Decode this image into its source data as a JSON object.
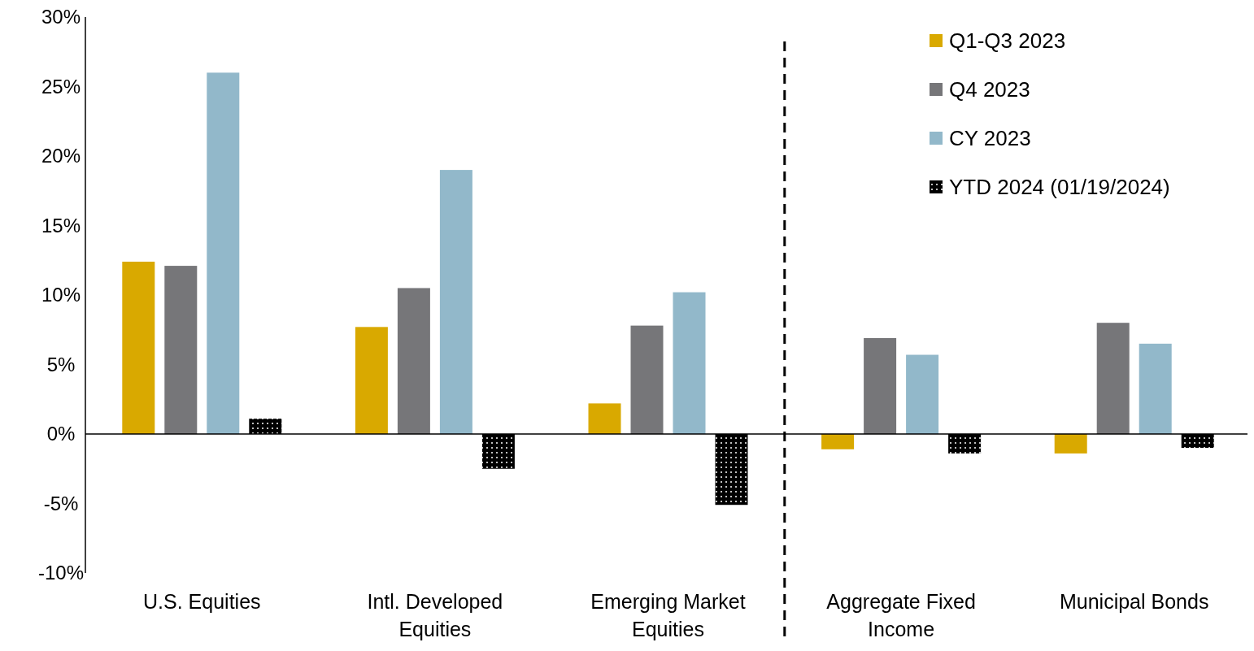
{
  "chart_data": {
    "type": "bar",
    "categories": [
      "U.S. Equities",
      "Intl. Developed Equities",
      "Emerging Market Equities",
      "Aggregate Fixed Income",
      "Municipal Bonds"
    ],
    "series": [
      {
        "name": "Q1-Q3 2023",
        "color": "#d9a900",
        "values": [
          12.4,
          7.7,
          2.2,
          -1.1,
          -1.4
        ]
      },
      {
        "name": "Q4 2023",
        "color": "#767679",
        "values": [
          12.1,
          10.5,
          7.8,
          6.9,
          8.0
        ]
      },
      {
        "name": "CY 2023",
        "color": "#92b8ca",
        "values": [
          26.0,
          19.0,
          10.2,
          5.7,
          6.5
        ]
      },
      {
        "name": "YTD 2024 (01/19/2024)",
        "color": "#000000",
        "values": [
          1.1,
          -2.5,
          -5.1,
          -1.4,
          -1.0
        ]
      }
    ],
    "ylim": [
      -10,
      30
    ],
    "yticks": [
      {
        "value": -10,
        "label": "-10%"
      },
      {
        "value": -5,
        "label": "-5%"
      },
      {
        "value": 0,
        "label": "0%"
      },
      {
        "value": 5,
        "label": "5%"
      },
      {
        "value": 10,
        "label": "10%"
      },
      {
        "value": 15,
        "label": "15%"
      },
      {
        "value": 20,
        "label": "20%"
      },
      {
        "value": 25,
        "label": "25%"
      },
      {
        "value": 30,
        "label": "30%"
      }
    ],
    "legend": "top right"
  }
}
